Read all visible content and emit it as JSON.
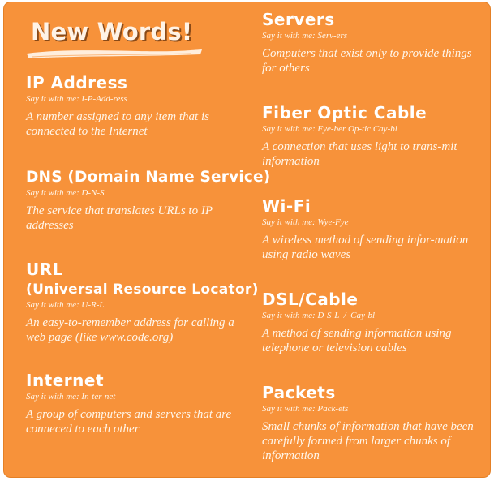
{
  "title": "New Words!",
  "colors": {
    "background": "#f7923a",
    "text": "#ffffff",
    "title_shadow": "#8a4a18"
  },
  "left_column": [
    {
      "term": "IP Address",
      "pronunciation": "Say it with me: I-P-Add-ress",
      "definition": "A number assigned to any item that is connected to the Internet"
    },
    {
      "term": "DNS (Domain Name Service)",
      "pronunciation": "Say it with me: D-N-S",
      "definition": "The service that translates URLs to IP addresses"
    },
    {
      "term": "URL",
      "term_sub": "(Universal Resource Locator)",
      "pronunciation": "Say it with me: U-R-L",
      "definition": "An easy-to-remember address for calling a web page (like www.code.org)"
    },
    {
      "term": "Internet",
      "pronunciation": "Say it with me: In-ter-net",
      "definition": "A group of computers and servers that are conneced to each other"
    }
  ],
  "right_column": [
    {
      "term": "Servers",
      "pronunciation": "Say it with me: Serv-ers",
      "definition": "Computers that exist only to provide things for others"
    },
    {
      "term": "Fiber Optic Cable",
      "pronunciation": "Say it with me: Fye-ber Op-tic Cay-bl",
      "definition": "A connection that uses light to trans-mit information"
    },
    {
      "term": "Wi-Fi",
      "pronunciation": "Say it with me: Wye-Fye",
      "definition": "A wireless method of sending infor-mation using radio waves"
    },
    {
      "term": "DSL/Cable",
      "pronunciation": "Say it with me: D-S-L  /  Cay-bl",
      "definition": "A method of sending information using telephone or television cables"
    },
    {
      "term": "Packets",
      "pronunciation": "Say it with me: Pack-ets",
      "definition": "Small chunks of information that have been carefully formed from larger chunks of information"
    }
  ]
}
